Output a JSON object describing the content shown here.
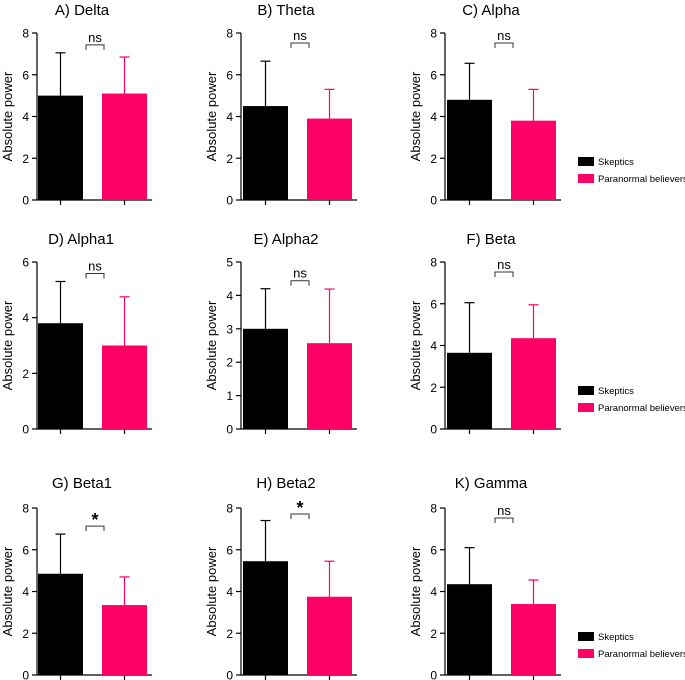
{
  "colors": {
    "skeptics": "#000000",
    "believers": "#ff0066",
    "axis": "#000000"
  },
  "legend": {
    "skeptics": "Skeptics",
    "believers": "Paranormal believers"
  },
  "chart_data": [
    {
      "type": "bar",
      "title": "A) Delta",
      "ylabel": "Absolute power",
      "ylim": [
        0,
        8
      ],
      "yticks": [
        0,
        2,
        4,
        6,
        8
      ],
      "series": [
        {
          "name": "Skeptics",
          "value": 5.0,
          "error": 2.05
        },
        {
          "name": "Paranormal believers",
          "value": 5.1,
          "error": 1.75
        }
      ],
      "significance": "ns"
    },
    {
      "type": "bar",
      "title": "B) Theta",
      "ylabel": "Absolute power",
      "ylim": [
        0,
        8
      ],
      "yticks": [
        0,
        2,
        4,
        6,
        8
      ],
      "series": [
        {
          "name": "Skeptics",
          "value": 4.5,
          "error": 2.15
        },
        {
          "name": "Paranormal believers",
          "value": 3.9,
          "error": 1.4
        }
      ],
      "significance": "ns"
    },
    {
      "type": "bar",
      "title": "C) Alpha",
      "ylabel": "Absolute power",
      "ylim": [
        0,
        8
      ],
      "yticks": [
        0,
        2,
        4,
        6,
        8
      ],
      "series": [
        {
          "name": "Skeptics",
          "value": 4.8,
          "error": 1.75
        },
        {
          "name": "Paranormal believers",
          "value": 3.8,
          "error": 1.5
        }
      ],
      "significance": "ns"
    },
    {
      "type": "bar",
      "title": "D) Alpha1",
      "ylabel": "Absolute power",
      "ylim": [
        0,
        6
      ],
      "yticks": [
        0,
        2,
        4,
        6
      ],
      "series": [
        {
          "name": "Skeptics",
          "value": 3.8,
          "error": 1.5
        },
        {
          "name": "Paranormal believers",
          "value": 3.0,
          "error": 1.75
        }
      ],
      "significance": "ns"
    },
    {
      "type": "bar",
      "title": "E) Alpha2",
      "ylabel": "Absolute power",
      "ylim": [
        0,
        5
      ],
      "yticks": [
        0,
        1,
        2,
        3,
        4,
        5
      ],
      "series": [
        {
          "name": "Skeptics",
          "value": 3.0,
          "error": 1.2
        },
        {
          "name": "Paranormal believers",
          "value": 2.57,
          "error": 1.62
        }
      ],
      "significance": "ns"
    },
    {
      "type": "bar",
      "title": "F) Beta",
      "ylabel": "Absolute power",
      "ylim": [
        0,
        8
      ],
      "yticks": [
        0,
        2,
        4,
        6,
        8
      ],
      "series": [
        {
          "name": "Skeptics",
          "value": 3.65,
          "error": 2.4
        },
        {
          "name": "Paranormal believers",
          "value": 4.35,
          "error": 1.6
        }
      ],
      "significance": "ns"
    },
    {
      "type": "bar",
      "title": "G) Beta1",
      "ylabel": "Absolute power",
      "ylim": [
        0,
        8
      ],
      "yticks": [
        0,
        2,
        4,
        6,
        8
      ],
      "series": [
        {
          "name": "Skeptics",
          "value": 4.85,
          "error": 1.9
        },
        {
          "name": "Paranormal believers",
          "value": 3.35,
          "error": 1.35
        }
      ],
      "significance": "*"
    },
    {
      "type": "bar",
      "title": "H) Beta2",
      "ylabel": "Absolute power",
      "ylim": [
        0,
        8
      ],
      "yticks": [
        0,
        2,
        4,
        6,
        8
      ],
      "series": [
        {
          "name": "Skeptics",
          "value": 5.45,
          "error": 1.95
        },
        {
          "name": "Paranormal believers",
          "value": 3.75,
          "error": 1.7
        }
      ],
      "significance": "*"
    },
    {
      "type": "bar",
      "title": "K) Gamma",
      "ylabel": "Absolute power",
      "ylim": [
        0,
        8
      ],
      "yticks": [
        0,
        2,
        4,
        6,
        8
      ],
      "series": [
        {
          "name": "Skeptics",
          "value": 4.35,
          "error": 1.75
        },
        {
          "name": "Paranormal believers",
          "value": 3.4,
          "error": 1.15
        }
      ],
      "significance": "ns"
    }
  ]
}
